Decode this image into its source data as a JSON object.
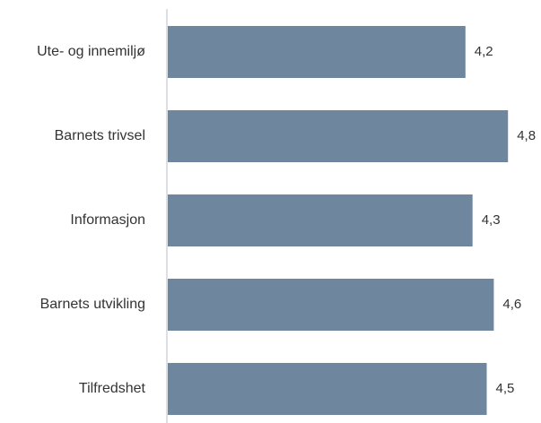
{
  "chart_data": {
    "type": "bar",
    "orientation": "horizontal",
    "categories": [
      "Ute- og innemiljø",
      "Barnets trivsel",
      "Informasjon",
      "Barnets utvikling",
      "Tilfredshet"
    ],
    "values": [
      4.2,
      4.8,
      4.3,
      4.6,
      4.5
    ],
    "value_labels": [
      "4,2",
      "4,8",
      "4,3",
      "4,6",
      "4,5"
    ],
    "xlim": [
      0,
      5
    ],
    "bar_color": "#6e869e",
    "axis_color": "#d0d5de",
    "grid": false,
    "legend": "none",
    "title": "",
    "xlabel": "",
    "ylabel": ""
  }
}
